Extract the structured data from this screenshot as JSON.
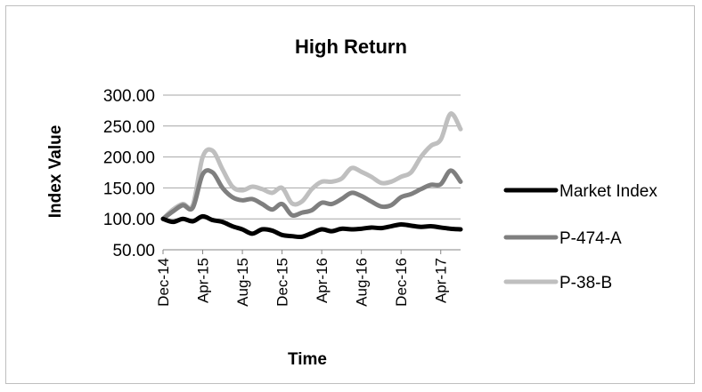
{
  "chart_data": {
    "type": "line",
    "title": "High Return",
    "xlabel": "Time",
    "ylabel": "Index Value",
    "ylim": [
      50,
      300
    ],
    "y_ticks": [
      "300.00",
      "250.00",
      "200.00",
      "150.00",
      "100.00",
      "50.00"
    ],
    "y_tick_values": [
      300,
      250,
      200,
      150,
      100,
      50
    ],
    "grid": true,
    "legend_position": "right",
    "x": [
      "Dec-14",
      "Jan-15",
      "Feb-15",
      "Mar-15",
      "Apr-15",
      "May-15",
      "Jun-15",
      "Jul-15",
      "Aug-15",
      "Sep-15",
      "Oct-15",
      "Nov-15",
      "Dec-15",
      "Jan-16",
      "Feb-16",
      "Mar-16",
      "Apr-16",
      "May-16",
      "Jun-16",
      "Jul-16",
      "Aug-16",
      "Sep-16",
      "Oct-16",
      "Nov-16",
      "Dec-16",
      "Jan-17",
      "Feb-17",
      "Mar-17",
      "Apr-17",
      "May-17",
      "Jun-17"
    ],
    "x_tick_labels": [
      "Dec-14",
      "Apr-15",
      "Aug-15",
      "Dec-15",
      "Apr-16",
      "Aug-16",
      "Dec-16",
      "Apr-17"
    ],
    "series": [
      {
        "name": "Market Index",
        "color": "#000000",
        "values": [
          100,
          95,
          100,
          96,
          104,
          98,
          95,
          88,
          83,
          76,
          83,
          81,
          74,
          72,
          71,
          77,
          83,
          80,
          84,
          83,
          84,
          86,
          85,
          88,
          91,
          89,
          87,
          88,
          86,
          84,
          83
        ]
      },
      {
        "name": "P-474-A",
        "color": "#7f7f7f",
        "values": [
          100,
          112,
          122,
          118,
          172,
          175,
          150,
          135,
          130,
          132,
          124,
          115,
          124,
          106,
          110,
          114,
          126,
          124,
          132,
          142,
          137,
          128,
          120,
          122,
          135,
          140,
          148,
          155,
          156,
          178,
          160
        ]
      },
      {
        "name": "P-38-B",
        "color": "#bfbfbf",
        "values": [
          100,
          115,
          124,
          122,
          200,
          210,
          180,
          152,
          146,
          152,
          148,
          142,
          150,
          125,
          128,
          148,
          160,
          160,
          165,
          182,
          176,
          168,
          158,
          160,
          168,
          175,
          200,
          218,
          228,
          270,
          245
        ]
      }
    ]
  }
}
